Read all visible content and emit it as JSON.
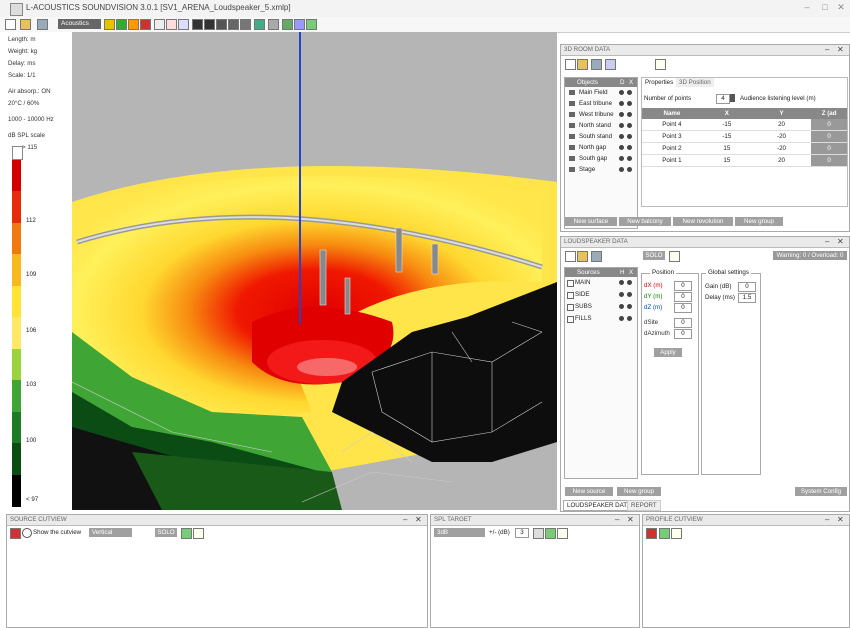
{
  "window": {
    "title": "L-ACOUSTICS SOUNDVISION 3.0.1 [SV1_ARENA_Loudspeaker_5.xmlp]"
  },
  "toolbar": {
    "mode_label": "Acoustics"
  },
  "left_info": {
    "lines": [
      "Length: m",
      "Weight: kg",
      "Delay: ms",
      "Scale: 1/1",
      "Air absorp.: ON",
      "20°C / 60%",
      "1000 - 10000 Hz",
      "dB SPL scale"
    ],
    "scale_max": "> 115",
    "ticks": [
      "112",
      "109",
      "106",
      "103",
      "100",
      "< 97"
    ],
    "scale_colors": [
      "#ffffff",
      "#d40000",
      "#e82a0c",
      "#f07a10",
      "#f8b820",
      "#ffe433",
      "#ffe866",
      "#9bd23e",
      "#3fa636",
      "#1d7a25",
      "#0b4b14",
      "#000000"
    ]
  },
  "room_data": {
    "title": "3D ROOM DATA",
    "objects_header": "Objects",
    "objects_cols": [
      "D",
      "X"
    ],
    "objects": [
      "Main Field",
      "East tribune",
      "West tribune",
      "North stand",
      "South stand",
      "North gap",
      "South gap",
      "Stage"
    ],
    "tabs": [
      "Properties",
      "3D Position"
    ],
    "num_points_label": "Number of points",
    "num_points_value": "4",
    "listening_label": "Audience listening level (m)",
    "columns": [
      "Name",
      "X",
      "Y",
      "Z (ad"
    ],
    "rows": [
      [
        "Point 4",
        "-15",
        "20",
        "0"
      ],
      [
        "Point 3",
        "-15",
        "-20",
        "0"
      ],
      [
        "Point 2",
        "15",
        "-20",
        "0"
      ],
      [
        "Point 1",
        "15",
        "20",
        "0"
      ]
    ],
    "buttons": [
      "New surface",
      "New balcony",
      "New revolution",
      "New group"
    ]
  },
  "loudspeaker": {
    "title": "LOUDSPEAKER DATA",
    "solo": "SOLO",
    "warning": "Warning: 0 / Overload: 0",
    "sources_header": "Sources",
    "sources_cols": [
      "H",
      "X"
    ],
    "sources": [
      "MAIN",
      "SIDE",
      "SUBS",
      "FILLS"
    ],
    "position_title": "Position",
    "position_fields": [
      {
        "label": "dX (m)",
        "value": "0",
        "color": "#cc0000"
      },
      {
        "label": "dY (m)",
        "value": "0",
        "color": "#008800"
      },
      {
        "label": "dZ (m)",
        "value": "0",
        "color": "#0044cc"
      },
      {
        "label": "dSite",
        "value": "0",
        "color": "#333333"
      },
      {
        "label": "dAzimuth",
        "value": "0",
        "color": "#333333"
      }
    ],
    "apply": "Apply",
    "global_title": "Global settings",
    "gain_label": "Gain (dB)",
    "gain_value": "0",
    "delay_label": "Delay (ms)",
    "delay_value": "1.5",
    "new_source": "New source",
    "new_group": "New group",
    "system_config": "System Config",
    "tabs": [
      "LOUDSPEAKER DATA",
      "REPORT"
    ]
  },
  "source_cutview": {
    "title": "SOURCE CUTVIEW",
    "show_label": "Show the cutview",
    "orientation": "Vertical",
    "solo": "SOLO"
  },
  "spl_target": {
    "title": "SPL TARGET",
    "range": "3dB",
    "tol_label": "+/- (dB)",
    "tol_value": "3"
  },
  "profile_cutview": {
    "title": "PROFILE CUTVIEW"
  }
}
